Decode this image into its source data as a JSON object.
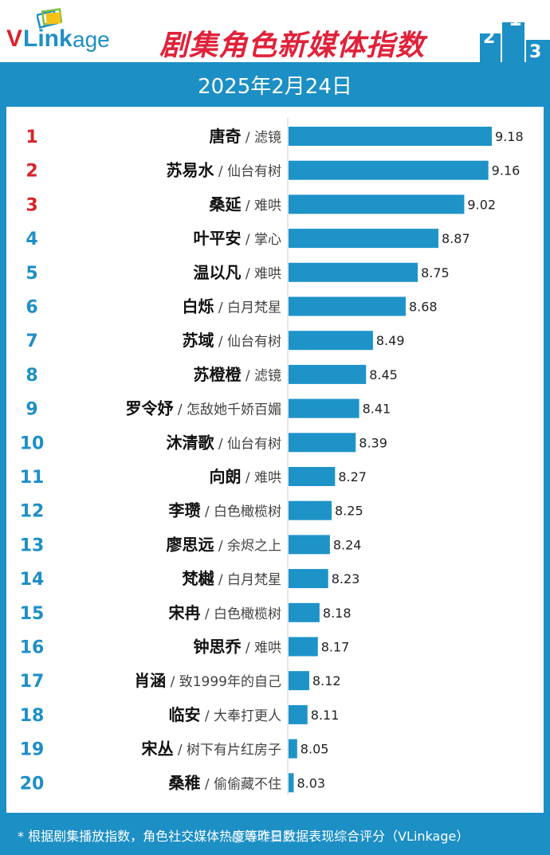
{
  "header": {
    "logo_v": "V",
    "logo_link": "Link",
    "logo_age": "age",
    "title": "剧集角色新媒体指数",
    "podium_labels": [
      "2",
      "1",
      "3"
    ]
  },
  "date": "2025年2月24日",
  "colors": {
    "brand_blue": "#1c8fc5",
    "bar": "#1e93c8",
    "rank_top3": "#d8232a",
    "rank_other": "#1e8fc6",
    "title_red": "#e0223a"
  },
  "chart_data": {
    "type": "bar",
    "orientation": "horizontal",
    "ranks": [
      "1",
      "2",
      "3",
      "4",
      "5",
      "6",
      "7",
      "8",
      "9",
      "10",
      "11",
      "12",
      "13",
      "14",
      "15",
      "16",
      "17",
      "18",
      "19",
      "20"
    ],
    "categories": [
      "唐奇",
      "苏易水",
      "桑延",
      "叶平安",
      "温以凡",
      "白烁",
      "苏域",
      "苏橙橙",
      "罗令妤",
      "沐清歌",
      "向朗",
      "李瓒",
      "廖思远",
      "梵樾",
      "宋冉",
      "钟思乔",
      "肖涵",
      "临安",
      "宋丛",
      "桑稚"
    ],
    "dramas": [
      "滤镜",
      "仙台有树",
      "难哄",
      "掌心",
      "难哄",
      "白月梵星",
      "仙台有树",
      "滤镜",
      "怎敌她千娇百媚",
      "仙台有树",
      "难哄",
      "白色橄榄树",
      "余烬之上",
      "白月梵星",
      "白色橄榄树",
      "难哄",
      "致1999年的自己",
      "大奉打更人",
      "树下有片红房子",
      "偷偷藏不住"
    ],
    "values": [
      9.18,
      9.16,
      9.02,
      8.87,
      8.75,
      8.68,
      8.49,
      8.45,
      8.41,
      8.39,
      8.27,
      8.25,
      8.24,
      8.23,
      8.18,
      8.17,
      8.12,
      8.11,
      8.05,
      8.03
    ],
    "value_labels": [
      "9.18",
      "9.16",
      "9.02",
      "8.87",
      "8.75",
      "8.68",
      "8.49",
      "8.45",
      "8.41",
      "8.39",
      "8.27",
      "8.25",
      "8.24",
      "8.23",
      "8.18",
      "8.17",
      "8.12",
      "8.11",
      "8.05",
      "8.03"
    ],
    "separator": " / ",
    "xlim": [
      8.0,
      9.2
    ],
    "grid": false
  },
  "footer": {
    "note": "* 根据剧集播放指数，角色社交媒体热度等昨日数据表现综合评分（VLinkage）",
    "watermark": "@琐琐星后"
  }
}
